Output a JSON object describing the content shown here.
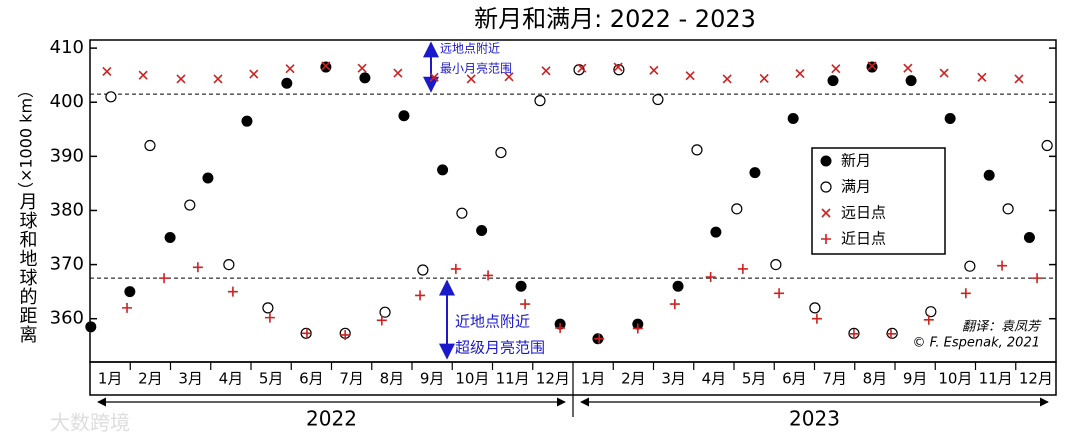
{
  "chart_data": {
    "type": "scatter",
    "title": "新月和满月: 2022 - 2023",
    "y_label": "月球和地球的距离",
    "y_label_unit": "（×1000 km）",
    "xlim": [
      0,
      24
    ],
    "ylim": [
      352,
      411.5
    ],
    "yticks": [
      360,
      370,
      380,
      390,
      400,
      410
    ],
    "month_labels": [
      "1月",
      "2月",
      "3月",
      "4月",
      "5月",
      "6月",
      "7月",
      "8月",
      "9月",
      "10月",
      "11月",
      "12月",
      "1月",
      "2月",
      "3月",
      "4月",
      "5月",
      "6月",
      "7月",
      "8月",
      "9月",
      "10月",
      "11月",
      "12月"
    ],
    "years": [
      "2022",
      "2023"
    ],
    "hlines": [
      401.5,
      367.5
    ],
    "annotations": [
      [
        "远地点附近",
        "最小月亮范围"
      ],
      [
        "近地点附近",
        "超级月亮范围"
      ]
    ],
    "credits": [
      "翻译：袁凤芳",
      "© F. Espenak, 2021"
    ],
    "watermark": "大数跨境",
    "series": [
      {
        "name": "新月",
        "color": "#000000",
        "marker": "filled",
        "x": [
          0.02,
          0.99,
          1.99,
          2.93,
          3.9,
          4.89,
          5.86,
          6.83,
          7.8,
          8.76,
          9.73,
          10.71,
          11.68,
          12.62,
          13.61,
          14.61,
          15.55,
          16.52,
          17.47,
          18.46,
          19.43,
          20.4,
          21.37,
          22.34,
          23.34
        ],
        "values": [
          358.5,
          365,
          375,
          386,
          396.5,
          403.5,
          406.5,
          404.5,
          397.5,
          387.5,
          376.3,
          366,
          359,
          356.3,
          359,
          366,
          376,
          387,
          397,
          404,
          406.5,
          404,
          397,
          386.5,
          375
        ]
      },
      {
        "name": "满月",
        "color": "#000000",
        "marker": "open",
        "x": [
          0.52,
          1.49,
          2.48,
          3.45,
          4.42,
          5.37,
          6.34,
          7.33,
          8.27,
          9.24,
          10.21,
          11.18,
          12.15,
          13.14,
          14.11,
          15.08,
          16.07,
          17.04,
          18.01,
          18.98,
          19.93,
          20.89,
          21.86,
          22.81,
          23.78
        ],
        "values": [
          401,
          392,
          381,
          370,
          362,
          357.3,
          357.3,
          361.2,
          369,
          379.5,
          390.7,
          400.3,
          406,
          406,
          400.5,
          391.2,
          380.3,
          370,
          362,
          357.3,
          357.3,
          361.3,
          369.7,
          380.3,
          392
        ]
      },
      {
        "name": "远日点",
        "color": "#cc2222",
        "marker": "x",
        "x": [
          0.42,
          1.32,
          2.26,
          3.18,
          4.07,
          4.97,
          5.86,
          6.76,
          7.65,
          8.55,
          9.47,
          10.41,
          11.33,
          12.22,
          13.12,
          14.01,
          14.91,
          15.83,
          16.75,
          17.64,
          18.53,
          19.43,
          20.32,
          21.22,
          22.16,
          23.08
        ],
        "values": [
          405.7,
          405,
          404.3,
          404.3,
          405.2,
          406.2,
          406.7,
          406.3,
          405.4,
          404.6,
          404.3,
          404.7,
          405.8,
          406.3,
          406.5,
          405.9,
          404.9,
          404.3,
          404.4,
          405.3,
          406.2,
          406.7,
          406.3,
          405.4,
          404.6,
          404.3
        ]
      },
      {
        "name": "近日点",
        "color": "#cc2222",
        "marker": "plus",
        "x": [
          0.92,
          1.84,
          2.68,
          3.55,
          4.47,
          5.39,
          6.34,
          7.25,
          8.2,
          9.09,
          9.89,
          10.81,
          11.68,
          12.65,
          13.61,
          14.53,
          15.42,
          16.22,
          17.12,
          18.06,
          18.98,
          19.9,
          20.84,
          21.76,
          22.66,
          23.53
        ],
        "values": [
          362,
          367.5,
          369.5,
          365,
          360.2,
          357.3,
          357,
          359.7,
          364.3,
          369.2,
          368,
          362.7,
          358.3,
          356.3,
          358.2,
          362.7,
          367.7,
          369.2,
          364.7,
          360,
          357.2,
          357.2,
          359.8,
          364.7,
          369.8,
          367.5
        ]
      }
    ]
  }
}
